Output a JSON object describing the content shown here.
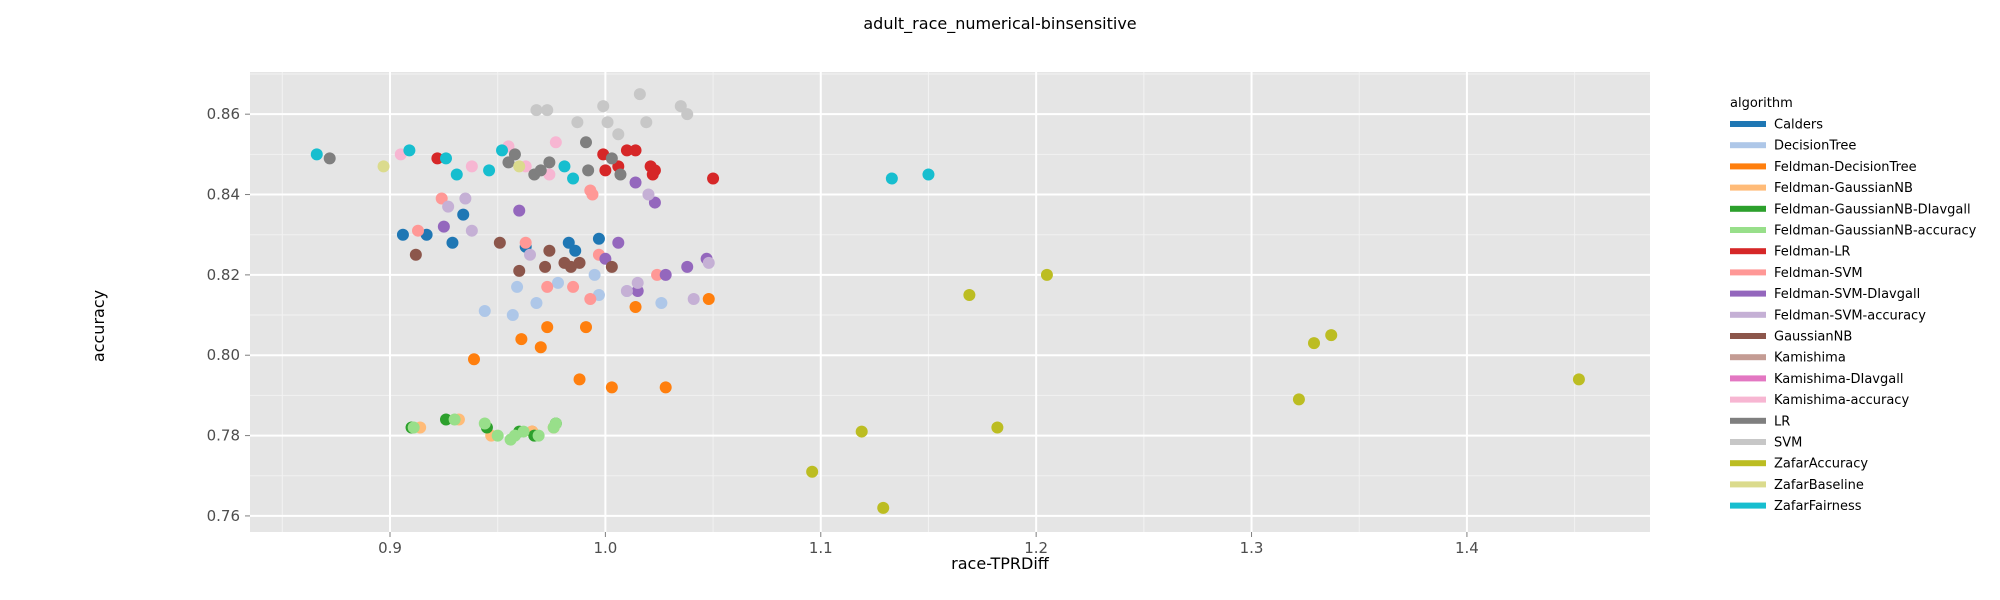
{
  "chart_data": {
    "type": "scatter",
    "title": "adult_race_numerical-binsensitive",
    "xlabel": "race-TPRDiff",
    "ylabel": "accuracy",
    "xlim": [
      0.835,
      1.485
    ],
    "ylim": [
      0.756,
      0.8705
    ],
    "xticks": [
      0.9,
      1.0,
      1.1,
      1.2,
      1.3,
      1.4
    ],
    "xtick_labels": [
      "0.9",
      "1.0",
      "1.1",
      "1.2",
      "1.3",
      "1.4"
    ],
    "yticks": [
      0.76,
      0.78,
      0.8,
      0.82,
      0.84,
      0.86
    ],
    "ytick_labels": [
      "0.76",
      "0.78",
      "0.80",
      "0.82",
      "0.84",
      "0.86"
    ],
    "grid": true,
    "legend_position": "right",
    "legend_title": "algorithm",
    "series": [
      {
        "name": "Calders",
        "color": "#1f77b4",
        "points": [
          [
            0.906,
            0.83
          ],
          [
            0.917,
            0.83
          ],
          [
            0.929,
            0.828
          ],
          [
            0.934,
            0.835
          ],
          [
            0.963,
            0.827
          ],
          [
            0.983,
            0.828
          ],
          [
            0.986,
            0.826
          ],
          [
            0.997,
            0.829
          ]
        ]
      },
      {
        "name": "DecisionTree",
        "color": "#aec7e8",
        "points": [
          [
            0.944,
            0.811
          ],
          [
            0.957,
            0.81
          ],
          [
            0.959,
            0.817
          ],
          [
            0.968,
            0.813
          ],
          [
            0.978,
            0.818
          ],
          [
            0.995,
            0.82
          ],
          [
            0.997,
            0.815
          ],
          [
            1.01,
            0.816
          ],
          [
            1.026,
            0.813
          ]
        ]
      },
      {
        "name": "Feldman-DecisionTree",
        "color": "#ff7f0e",
        "points": [
          [
            0.939,
            0.799
          ],
          [
            0.961,
            0.804
          ],
          [
            0.97,
            0.802
          ],
          [
            0.973,
            0.807
          ],
          [
            0.988,
            0.794
          ],
          [
            0.991,
            0.807
          ],
          [
            1.003,
            0.792
          ],
          [
            1.014,
            0.812
          ],
          [
            1.028,
            0.792
          ],
          [
            1.048,
            0.814
          ],
          [
            0.966,
            0.781
          ]
        ]
      },
      {
        "name": "Feldman-GaussianNB",
        "color": "#ffbb78",
        "points": [
          [
            0.914,
            0.782
          ],
          [
            0.932,
            0.784
          ],
          [
            0.947,
            0.78
          ],
          [
            0.966,
            0.781
          ],
          [
            0.976,
            0.782
          ]
        ]
      },
      {
        "name": "Feldman-GaussianNB-DIavgall",
        "color": "#2ca02c",
        "points": [
          [
            0.91,
            0.782
          ],
          [
            0.926,
            0.784
          ],
          [
            0.945,
            0.782
          ],
          [
            0.96,
            0.781
          ],
          [
            0.967,
            0.78
          ],
          [
            0.977,
            0.783
          ]
        ]
      },
      {
        "name": "Feldman-GaussianNB-accuracy",
        "color": "#98df8a",
        "points": [
          [
            0.911,
            0.782
          ],
          [
            0.93,
            0.784
          ],
          [
            0.944,
            0.783
          ],
          [
            0.95,
            0.78
          ],
          [
            0.956,
            0.779
          ],
          [
            0.958,
            0.78
          ],
          [
            0.962,
            0.781
          ],
          [
            0.969,
            0.78
          ],
          [
            0.976,
            0.782
          ],
          [
            0.977,
            0.783
          ]
        ]
      },
      {
        "name": "Feldman-LR",
        "color": "#d62728",
        "points": [
          [
            0.922,
            0.849
          ],
          [
            0.999,
            0.85
          ],
          [
            1.0,
            0.846
          ],
          [
            1.006,
            0.847
          ],
          [
            1.01,
            0.851
          ],
          [
            1.014,
            0.851
          ],
          [
            1.021,
            0.847
          ],
          [
            1.023,
            0.846
          ],
          [
            1.05,
            0.844
          ],
          [
            1.022,
            0.845
          ]
        ]
      },
      {
        "name": "Feldman-SVM",
        "color": "#ff9896",
        "points": [
          [
            0.924,
            0.839
          ],
          [
            0.913,
            0.831
          ],
          [
            0.963,
            0.828
          ],
          [
            0.973,
            0.817
          ],
          [
            0.985,
            0.817
          ],
          [
            0.993,
            0.814
          ],
          [
            0.993,
            0.841
          ],
          [
            0.994,
            0.84
          ],
          [
            0.997,
            0.825
          ],
          [
            1.024,
            0.82
          ]
        ]
      },
      {
        "name": "Feldman-SVM-DIavgall",
        "color": "#9467bd",
        "points": [
          [
            0.925,
            0.832
          ],
          [
            0.96,
            0.836
          ],
          [
            1.006,
            0.828
          ],
          [
            1.014,
            0.843
          ],
          [
            1.023,
            0.838
          ],
          [
            1.015,
            0.816
          ],
          [
            1.028,
            0.82
          ],
          [
            1.038,
            0.822
          ],
          [
            1.047,
            0.824
          ],
          [
            1.0,
            0.824
          ]
        ]
      },
      {
        "name": "Feldman-SVM-accuracy",
        "color": "#c5b0d5",
        "points": [
          [
            0.927,
            0.837
          ],
          [
            0.935,
            0.839
          ],
          [
            0.938,
            0.831
          ],
          [
            0.965,
            0.825
          ],
          [
            1.015,
            0.818
          ],
          [
            1.02,
            0.84
          ],
          [
            1.041,
            0.814
          ],
          [
            1.048,
            0.823
          ],
          [
            1.01,
            0.816
          ]
        ]
      },
      {
        "name": "GaussianNB",
        "color": "#8c564b",
        "points": [
          [
            0.912,
            0.825
          ],
          [
            0.951,
            0.828
          ],
          [
            0.96,
            0.821
          ],
          [
            0.972,
            0.822
          ],
          [
            0.974,
            0.826
          ],
          [
            0.981,
            0.823
          ],
          [
            0.984,
            0.822
          ],
          [
            0.988,
            0.823
          ],
          [
            1.003,
            0.822
          ]
        ]
      },
      {
        "name": "Kamishima",
        "color": "#c49c94",
        "points": []
      },
      {
        "name": "Kamishima-DIavgall",
        "color": "#e377c2",
        "points": []
      },
      {
        "name": "Kamishima-accuracy",
        "color": "#f7b6d2",
        "points": [
          [
            0.905,
            0.85
          ],
          [
            0.938,
            0.847
          ],
          [
            0.955,
            0.852
          ],
          [
            0.963,
            0.847
          ],
          [
            0.974,
            0.845
          ],
          [
            0.977,
            0.853
          ]
        ]
      },
      {
        "name": "LR",
        "color": "#7f7f7f",
        "points": [
          [
            0.872,
            0.849
          ],
          [
            0.955,
            0.848
          ],
          [
            0.958,
            0.85
          ],
          [
            0.967,
            0.845
          ],
          [
            0.97,
            0.846
          ],
          [
            0.974,
            0.848
          ],
          [
            0.991,
            0.853
          ],
          [
            0.992,
            0.846
          ],
          [
            1.003,
            0.849
          ],
          [
            1.007,
            0.845
          ]
        ]
      },
      {
        "name": "SVM",
        "color": "#c7c7c7",
        "points": [
          [
            0.968,
            0.861
          ],
          [
            0.973,
            0.861
          ],
          [
            0.987,
            0.858
          ],
          [
            0.999,
            0.862
          ],
          [
            1.001,
            0.858
          ],
          [
            1.006,
            0.855
          ],
          [
            1.016,
            0.865
          ],
          [
            1.019,
            0.858
          ],
          [
            1.035,
            0.862
          ],
          [
            1.038,
            0.86
          ]
        ]
      },
      {
        "name": "ZafarAccuracy",
        "color": "#bcbd22",
        "points": [
          [
            1.096,
            0.771
          ],
          [
            1.119,
            0.781
          ],
          [
            1.129,
            0.762
          ],
          [
            1.169,
            0.815
          ],
          [
            1.182,
            0.782
          ],
          [
            1.205,
            0.82
          ],
          [
            1.322,
            0.789
          ],
          [
            1.329,
            0.803
          ],
          [
            1.337,
            0.805
          ],
          [
            1.452,
            0.794
          ]
        ]
      },
      {
        "name": "ZafarBaseline",
        "color": "#dbdb8d",
        "points": [
          [
            0.897,
            0.847
          ],
          [
            0.96,
            0.847
          ]
        ]
      },
      {
        "name": "ZafarFairness",
        "color": "#17becf",
        "points": [
          [
            0.866,
            0.85
          ],
          [
            0.909,
            0.851
          ],
          [
            0.926,
            0.849
          ],
          [
            0.931,
            0.845
          ],
          [
            0.946,
            0.846
          ],
          [
            0.952,
            0.851
          ],
          [
            0.981,
            0.847
          ],
          [
            0.985,
            0.844
          ],
          [
            1.133,
            0.844
          ],
          [
            1.15,
            0.845
          ]
        ]
      }
    ]
  }
}
